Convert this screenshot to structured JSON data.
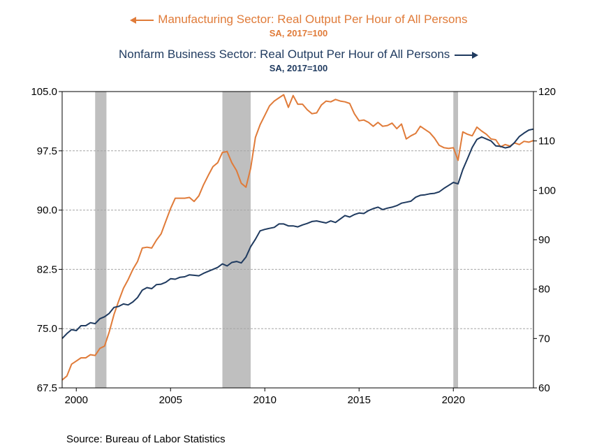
{
  "header": {
    "series1_title": "Manufacturing Sector: Real Output Per Hour of All Persons",
    "series1_subtitle": "SA, 2017=100",
    "series2_title": "Nonfarm Business Sector: Real Output Per Hour of All Persons",
    "series2_subtitle": "SA, 2017=100"
  },
  "source": "Source:  Bureau of Labor Statistics",
  "colors": {
    "manufacturing": "#E07B39",
    "nonfarm": "#1F3A5F",
    "recession": "#BFBFBF",
    "grid": "#A6A6A6"
  },
  "chart_data": {
    "type": "line",
    "xlabel": "",
    "x_ticks": [
      "2000",
      "2005",
      "2010",
      "2015",
      "2020"
    ],
    "xlim": [
      1999.25,
      2024.25
    ],
    "left_axis": {
      "ylim": [
        67.5,
        105.0
      ],
      "ticks": [
        "67.5",
        "75.0",
        "82.5",
        "90.0",
        "97.5",
        "105.0"
      ]
    },
    "right_axis": {
      "ylim": [
        60,
        120
      ],
      "ticks": [
        "60",
        "70",
        "80",
        "90",
        "100",
        "110",
        "120"
      ]
    },
    "grid": "horizontal dashed",
    "recessions": [
      [
        2001.0,
        2001.6
      ],
      [
        2007.75,
        2009.25
      ],
      [
        2020.0,
        2020.25
      ]
    ],
    "series": [
      {
        "name": "Manufacturing Sector: Real Output Per Hour of All Persons",
        "axis": "left",
        "points": [
          [
            1999.25,
            68.5
          ],
          [
            1999.5,
            69.0
          ],
          [
            1999.75,
            70.5
          ],
          [
            2000.0,
            70.9
          ],
          [
            2000.25,
            71.3
          ],
          [
            2000.5,
            71.3
          ],
          [
            2000.75,
            71.7
          ],
          [
            2001.0,
            71.6
          ],
          [
            2001.25,
            72.5
          ],
          [
            2001.5,
            72.8
          ],
          [
            2001.75,
            74.6
          ],
          [
            2002.0,
            76.8
          ],
          [
            2002.25,
            78.5
          ],
          [
            2002.5,
            80.1
          ],
          [
            2002.75,
            81.2
          ],
          [
            2003.0,
            82.5
          ],
          [
            2003.25,
            83.5
          ],
          [
            2003.5,
            85.2
          ],
          [
            2003.75,
            85.3
          ],
          [
            2004.0,
            85.2
          ],
          [
            2004.25,
            86.2
          ],
          [
            2004.5,
            87.0
          ],
          [
            2004.75,
            88.6
          ],
          [
            2005.0,
            90.2
          ],
          [
            2005.25,
            91.5
          ],
          [
            2005.5,
            91.5
          ],
          [
            2005.75,
            91.5
          ],
          [
            2006.0,
            91.6
          ],
          [
            2006.25,
            91.1
          ],
          [
            2006.5,
            91.8
          ],
          [
            2006.75,
            93.2
          ],
          [
            2007.0,
            94.4
          ],
          [
            2007.25,
            95.5
          ],
          [
            2007.5,
            96.0
          ],
          [
            2007.75,
            97.3
          ],
          [
            2008.0,
            97.4
          ],
          [
            2008.25,
            96.0
          ],
          [
            2008.5,
            95.0
          ],
          [
            2008.75,
            93.4
          ],
          [
            2009.0,
            92.9
          ],
          [
            2009.25,
            95.3
          ],
          [
            2009.5,
            99.2
          ],
          [
            2009.75,
            100.8
          ],
          [
            2010.0,
            102.0
          ],
          [
            2010.25,
            103.2
          ],
          [
            2010.5,
            103.8
          ],
          [
            2010.75,
            104.2
          ],
          [
            2011.0,
            104.6
          ],
          [
            2011.25,
            103.0
          ],
          [
            2011.5,
            104.5
          ],
          [
            2011.75,
            103.4
          ],
          [
            2012.0,
            103.4
          ],
          [
            2012.25,
            102.7
          ],
          [
            2012.5,
            102.2
          ],
          [
            2012.75,
            102.3
          ],
          [
            2013.0,
            103.3
          ],
          [
            2013.25,
            103.8
          ],
          [
            2013.5,
            103.7
          ],
          [
            2013.75,
            104.0
          ],
          [
            2014.0,
            103.8
          ],
          [
            2014.25,
            103.7
          ],
          [
            2014.5,
            103.5
          ],
          [
            2014.75,
            102.2
          ],
          [
            2015.0,
            101.3
          ],
          [
            2015.25,
            101.4
          ],
          [
            2015.5,
            101.1
          ],
          [
            2015.75,
            100.6
          ],
          [
            2016.0,
            101.1
          ],
          [
            2016.25,
            100.6
          ],
          [
            2016.5,
            100.7
          ],
          [
            2016.75,
            101.0
          ],
          [
            2017.0,
            100.3
          ],
          [
            2017.25,
            100.9
          ],
          [
            2017.5,
            99.0
          ],
          [
            2017.75,
            99.4
          ],
          [
            2018.0,
            99.7
          ],
          [
            2018.25,
            100.6
          ],
          [
            2018.5,
            100.2
          ],
          [
            2018.75,
            99.8
          ],
          [
            2019.0,
            99.1
          ],
          [
            2019.25,
            98.2
          ],
          [
            2019.5,
            97.9
          ],
          [
            2019.75,
            97.8
          ],
          [
            2020.0,
            97.9
          ],
          [
            2020.25,
            96.3
          ],
          [
            2020.5,
            99.9
          ],
          [
            2020.75,
            99.6
          ],
          [
            2021.0,
            99.4
          ],
          [
            2021.25,
            100.5
          ],
          [
            2021.5,
            100.0
          ],
          [
            2021.75,
            99.6
          ],
          [
            2022.0,
            99.0
          ],
          [
            2022.25,
            98.9
          ],
          [
            2022.5,
            98.0
          ],
          [
            2022.75,
            98.3
          ],
          [
            2023.0,
            98.1
          ],
          [
            2023.25,
            98.5
          ],
          [
            2023.5,
            98.3
          ],
          [
            2023.75,
            98.7
          ],
          [
            2024.0,
            98.6
          ],
          [
            2024.25,
            98.8
          ]
        ]
      },
      {
        "name": "Nonfarm Business Sector: Real Output Per Hour of All Persons",
        "axis": "right",
        "points": [
          [
            1999.25,
            70.0
          ],
          [
            1999.5,
            71.0
          ],
          [
            1999.75,
            71.8
          ],
          [
            2000.0,
            71.6
          ],
          [
            2000.25,
            72.6
          ],
          [
            2000.5,
            72.6
          ],
          [
            2000.75,
            73.2
          ],
          [
            2001.0,
            73.0
          ],
          [
            2001.25,
            74.0
          ],
          [
            2001.5,
            74.4
          ],
          [
            2001.75,
            75.1
          ],
          [
            2002.0,
            76.3
          ],
          [
            2002.25,
            76.5
          ],
          [
            2002.5,
            77.0
          ],
          [
            2002.75,
            76.8
          ],
          [
            2003.0,
            77.4
          ],
          [
            2003.25,
            78.3
          ],
          [
            2003.5,
            79.8
          ],
          [
            2003.75,
            80.3
          ],
          [
            2004.0,
            80.1
          ],
          [
            2004.25,
            80.9
          ],
          [
            2004.5,
            81.0
          ],
          [
            2004.75,
            81.4
          ],
          [
            2005.0,
            82.1
          ],
          [
            2005.25,
            82.0
          ],
          [
            2005.5,
            82.4
          ],
          [
            2005.75,
            82.5
          ],
          [
            2006.0,
            82.9
          ],
          [
            2006.25,
            82.8
          ],
          [
            2006.5,
            82.7
          ],
          [
            2006.75,
            83.2
          ],
          [
            2007.0,
            83.6
          ],
          [
            2007.25,
            84.0
          ],
          [
            2007.5,
            84.4
          ],
          [
            2007.75,
            85.1
          ],
          [
            2008.0,
            84.7
          ],
          [
            2008.25,
            85.4
          ],
          [
            2008.5,
            85.6
          ],
          [
            2008.75,
            85.3
          ],
          [
            2009.0,
            86.5
          ],
          [
            2009.25,
            88.6
          ],
          [
            2009.5,
            90.1
          ],
          [
            2009.75,
            91.8
          ],
          [
            2010.0,
            92.1
          ],
          [
            2010.25,
            92.3
          ],
          [
            2010.5,
            92.5
          ],
          [
            2010.75,
            93.2
          ],
          [
            2011.0,
            93.2
          ],
          [
            2011.25,
            92.8
          ],
          [
            2011.5,
            92.8
          ],
          [
            2011.75,
            92.6
          ],
          [
            2012.0,
            93.0
          ],
          [
            2012.25,
            93.3
          ],
          [
            2012.5,
            93.7
          ],
          [
            2012.75,
            93.8
          ],
          [
            2013.0,
            93.6
          ],
          [
            2013.25,
            93.4
          ],
          [
            2013.5,
            93.8
          ],
          [
            2013.75,
            93.5
          ],
          [
            2014.0,
            94.2
          ],
          [
            2014.25,
            94.9
          ],
          [
            2014.5,
            94.6
          ],
          [
            2014.75,
            95.1
          ],
          [
            2015.0,
            95.4
          ],
          [
            2015.25,
            95.3
          ],
          [
            2015.5,
            95.9
          ],
          [
            2015.75,
            96.3
          ],
          [
            2016.0,
            96.6
          ],
          [
            2016.25,
            96.1
          ],
          [
            2016.5,
            96.4
          ],
          [
            2016.75,
            96.6
          ],
          [
            2017.0,
            96.9
          ],
          [
            2017.25,
            97.4
          ],
          [
            2017.5,
            97.6
          ],
          [
            2017.75,
            97.8
          ],
          [
            2018.0,
            98.6
          ],
          [
            2018.25,
            99.0
          ],
          [
            2018.5,
            99.1
          ],
          [
            2018.75,
            99.3
          ],
          [
            2019.0,
            99.4
          ],
          [
            2019.25,
            99.7
          ],
          [
            2019.5,
            100.4
          ],
          [
            2019.75,
            101.0
          ],
          [
            2020.0,
            101.6
          ],
          [
            2020.25,
            101.3
          ],
          [
            2020.5,
            104.2
          ],
          [
            2020.75,
            106.4
          ],
          [
            2021.0,
            108.7
          ],
          [
            2021.25,
            110.3
          ],
          [
            2021.5,
            110.8
          ],
          [
            2021.75,
            110.4
          ],
          [
            2022.0,
            110.0
          ],
          [
            2022.25,
            109.0
          ],
          [
            2022.5,
            108.9
          ],
          [
            2022.75,
            108.6
          ],
          [
            2023.0,
            108.8
          ],
          [
            2023.25,
            109.7
          ],
          [
            2023.5,
            110.9
          ],
          [
            2023.75,
            111.6
          ],
          [
            2024.0,
            112.2
          ],
          [
            2024.25,
            112.4
          ]
        ]
      }
    ]
  }
}
